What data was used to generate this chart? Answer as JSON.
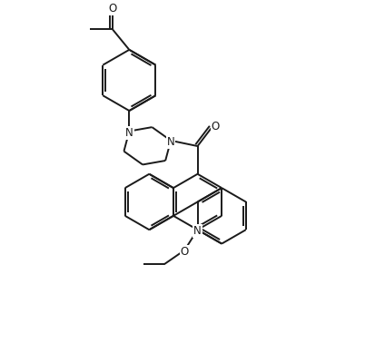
{
  "bg_color": "#ffffff",
  "line_color": "#1a1a1a",
  "line_width": 1.4,
  "font_size": 8.5,
  "figsize": [
    4.24,
    3.78
  ],
  "dpi": 100,
  "xlim": [
    0,
    10
  ],
  "ylim": [
    0,
    9
  ]
}
